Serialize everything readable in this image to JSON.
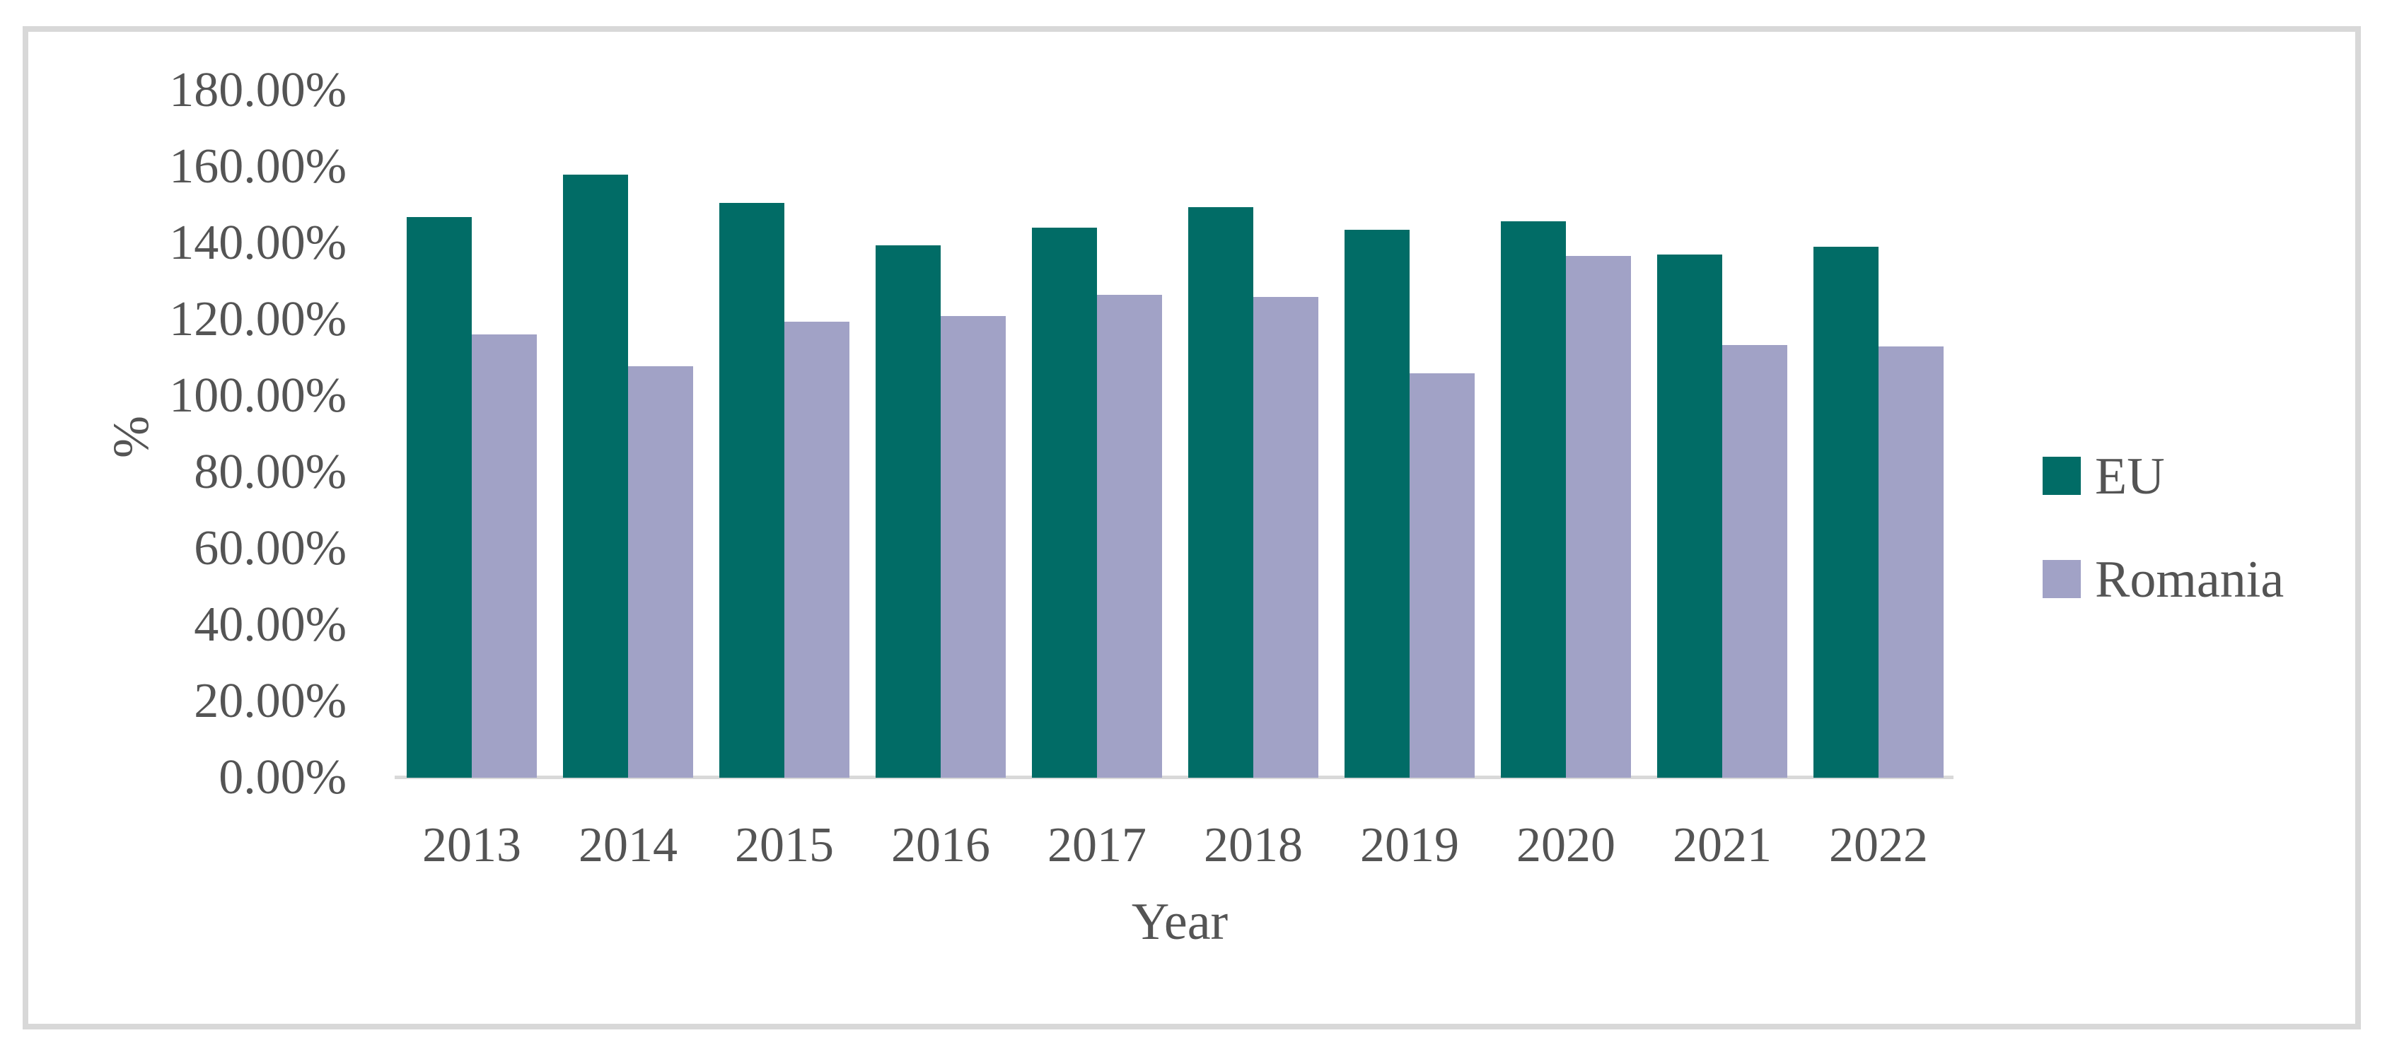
{
  "figure": {
    "background_color": "#ffffff",
    "frame_border_color": "#d8d8d8",
    "axis_line_color": "#d9d9d9",
    "label_color": "#545454"
  },
  "chart_data": {
    "type": "bar",
    "title": "",
    "categories": [
      "2013",
      "2014",
      "2015",
      "2016",
      "2017",
      "2018",
      "2019",
      "2020",
      "2021",
      "2022"
    ],
    "series": [
      {
        "name": "EU",
        "color": "#016c66",
        "values": [
          146.9,
          158.0,
          150.6,
          139.4,
          144.1,
          149.4,
          143.5,
          145.7,
          137.0,
          139.1
        ]
      },
      {
        "name": "Romania",
        "color": "#a1a2c6",
        "values": [
          116.1,
          107.8,
          119.4,
          121.0,
          126.5,
          125.9,
          105.9,
          136.7,
          113.3,
          113.0
        ]
      }
    ],
    "xlabel": "Year",
    "ylabel": "%",
    "ylim": [
      0,
      180
    ],
    "ytick_step": 20,
    "ytick_labels": [
      "0.00%",
      "20.00%",
      "40.00%",
      "60.00%",
      "80.00%",
      "100.00%",
      "120.00%",
      "140.00%",
      "160.00%",
      "180.00%"
    ],
    "grid": false,
    "legend_position": "right",
    "legend_items": [
      "EU",
      "Romania"
    ]
  }
}
